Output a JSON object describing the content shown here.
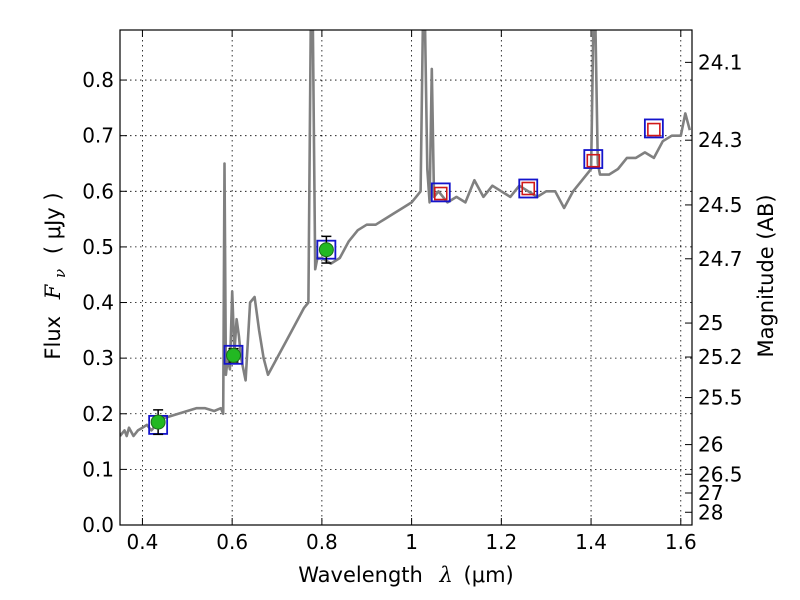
{
  "chart_data": {
    "type": "line",
    "xlabel_prefix": "Wavelength",
    "xlabel_symbol": "λ",
    "xlabel_unit": "(μm)",
    "ylabel_prefix": "Flux",
    "ylabel_symbol": "F",
    "ylabel_sub": "ν",
    "ylabel_unit": "( μJy )",
    "y2label": "Magnitude (AB)",
    "xlim": [
      0.35,
      1.625
    ],
    "ylim": [
      0.0,
      0.89
    ],
    "grid": true,
    "x_ticks": [
      0.4,
      0.6,
      0.8,
      1.0,
      1.2,
      1.4,
      1.6
    ],
    "x_tick_labels": [
      "0.4",
      "0.6",
      "0.8",
      "1",
      "1.2",
      "1.4",
      "1.6"
    ],
    "y_ticks": [
      0.0,
      0.1,
      0.2,
      0.3,
      0.4,
      0.5,
      0.6,
      0.7,
      0.8
    ],
    "y_tick_labels": [
      "0.0",
      "0.1",
      "0.2",
      "0.3",
      "0.4",
      "0.5",
      "0.6",
      "0.7",
      "0.8"
    ],
    "y2_ticks": [
      24.1,
      24.3,
      24.5,
      24.7,
      25,
      25.2,
      25.5,
      26,
      26.5,
      27,
      28
    ],
    "y2_tick_labels": [
      "24.1",
      "24.3",
      "24.5",
      "24.7",
      "25",
      "25.2",
      "25.5",
      "26",
      "26.5",
      "27",
      "28"
    ],
    "colors": {
      "spectrum": "#808080",
      "model_box": "#1414cc",
      "upper_box": "#d01818",
      "observed": "#22b822"
    },
    "spectrum": {
      "x": [
        0.35,
        0.36,
        0.365,
        0.37,
        0.38,
        0.39,
        0.4,
        0.41,
        0.42,
        0.43,
        0.44,
        0.46,
        0.48,
        0.5,
        0.52,
        0.54,
        0.56,
        0.575,
        0.58,
        0.583,
        0.586,
        0.59,
        0.595,
        0.6,
        0.605,
        0.61,
        0.615,
        0.62,
        0.63,
        0.64,
        0.65,
        0.66,
        0.67,
        0.68,
        0.7,
        0.72,
        0.74,
        0.76,
        0.77,
        0.775,
        0.78,
        0.785,
        0.79,
        0.8,
        0.82,
        0.84,
        0.86,
        0.88,
        0.9,
        0.92,
        0.94,
        0.96,
        0.98,
        1.0,
        1.01,
        1.02,
        1.025,
        1.03,
        1.035,
        1.04,
        1.045,
        1.05,
        1.06,
        1.08,
        1.1,
        1.12,
        1.14,
        1.16,
        1.18,
        1.2,
        1.22,
        1.24,
        1.26,
        1.28,
        1.3,
        1.32,
        1.34,
        1.36,
        1.38,
        1.4,
        1.405,
        1.41,
        1.415,
        1.42,
        1.44,
        1.46,
        1.48,
        1.5,
        1.52,
        1.54,
        1.56,
        1.58,
        1.6,
        1.61,
        1.62
      ],
      "y": [
        0.16,
        0.17,
        0.16,
        0.175,
        0.16,
        0.17,
        0.175,
        0.18,
        0.17,
        0.18,
        0.19,
        0.195,
        0.2,
        0.205,
        0.21,
        0.21,
        0.205,
        0.21,
        0.2,
        0.65,
        0.27,
        0.3,
        0.28,
        0.42,
        0.31,
        0.37,
        0.34,
        0.3,
        0.26,
        0.4,
        0.41,
        0.35,
        0.3,
        0.27,
        0.3,
        0.33,
        0.36,
        0.39,
        0.4,
        0.89,
        0.89,
        0.46,
        0.48,
        0.48,
        0.47,
        0.48,
        0.51,
        0.53,
        0.54,
        0.54,
        0.55,
        0.56,
        0.57,
        0.58,
        0.59,
        0.6,
        0.89,
        0.89,
        0.64,
        0.58,
        0.82,
        0.59,
        0.6,
        0.58,
        0.59,
        0.58,
        0.62,
        0.59,
        0.61,
        0.6,
        0.59,
        0.61,
        0.6,
        0.59,
        0.6,
        0.6,
        0.57,
        0.6,
        0.62,
        0.64,
        0.89,
        0.89,
        0.65,
        0.63,
        0.63,
        0.64,
        0.66,
        0.66,
        0.67,
        0.66,
        0.69,
        0.7,
        0.7,
        0.74,
        0.71
      ]
    },
    "model_points": {
      "x": [
        0.435,
        0.603,
        0.81,
        1.065,
        1.26,
        1.405,
        1.54
      ],
      "y": [
        0.18,
        0.306,
        0.495,
        0.598,
        0.605,
        0.658,
        0.713
      ]
    },
    "observed_points": {
      "x": [
        0.435,
        0.603,
        0.81
      ],
      "y": [
        0.185,
        0.305,
        0.495
      ],
      "err": [
        0.022,
        0.012,
        0.024
      ]
    },
    "upper_points": {
      "x": [
        1.065,
        1.26,
        1.405,
        1.54
      ],
      "y": [
        0.596,
        0.605,
        0.655,
        0.711
      ]
    }
  }
}
